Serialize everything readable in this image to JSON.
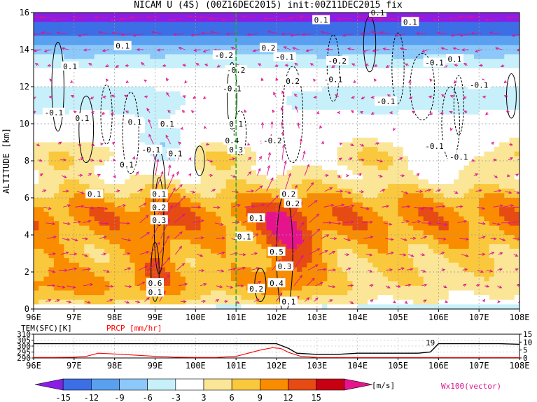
{
  "title": "NICAM U (4S) (00Z16DEC2015) init:00Z11DEC2015 fix",
  "chart_data": [
    {
      "type": "heatmap",
      "title": "NICAM U (4S) (00Z16DEC2015) init:00Z11DEC2015 fix",
      "xlabel": "",
      "ylabel": "ALTITUDE [km]",
      "x_ticks": [
        "96E",
        "97E",
        "98E",
        "99E",
        "100E",
        "101E",
        "102E",
        "103E",
        "104E",
        "105E",
        "106E",
        "107E",
        "108E"
      ],
      "xlim": [
        96,
        108
      ],
      "y_ticks": [
        "0",
        "2",
        "4",
        "6",
        "8",
        "10",
        "12",
        "14",
        "16"
      ],
      "ylim": [
        0,
        16
      ],
      "grid": true,
      "shading_levels": [
        -15,
        -12,
        -9,
        -6,
        -3,
        3,
        6,
        9,
        12,
        15
      ],
      "shading_colors": [
        "#8a1ee6",
        "#3c6ee6",
        "#5aa0f0",
        "#8cc8fa",
        "#c8f0fa",
        "#ffffff",
        "#fae696",
        "#fac83c",
        "#fa8c00",
        "#e64b14",
        "#c80014",
        "#e6148c"
      ],
      "colorbar_unit": "[m/s]",
      "vector_label": "Wx100(vector)",
      "vector_color": "#dc148c",
      "marker_line_lon": 101,
      "contour_labels": [
        {
          "text": "0.1",
          "lon": 96.9,
          "alt": 13.1
        },
        {
          "text": "0.1",
          "lon": 98.2,
          "alt": 14.2
        },
        {
          "text": "0.1",
          "lon": 97.2,
          "alt": 10.3
        },
        {
          "text": "0.1",
          "lon": 98.5,
          "alt": 10.1
        },
        {
          "text": "0.1",
          "lon": 99.3,
          "alt": 10.0
        },
        {
          "text": "-0.1",
          "lon": 96.5,
          "alt": 10.6
        },
        {
          "text": "-0.1",
          "lon": 98.9,
          "alt": 8.6
        },
        {
          "text": "0.1",
          "lon": 98.3,
          "alt": 7.8
        },
        {
          "text": "0.1",
          "lon": 97.5,
          "alt": 6.2
        },
        {
          "text": "0.1",
          "lon": 99.5,
          "alt": 8.4
        },
        {
          "text": "-0.2",
          "lon": 100.7,
          "alt": 13.7
        },
        {
          "text": "-0.2",
          "lon": 101.0,
          "alt": 12.9
        },
        {
          "text": "-0.1",
          "lon": 100.9,
          "alt": 11.9
        },
        {
          "text": "0.2",
          "lon": 101.8,
          "alt": 14.1
        },
        {
          "text": "-0.1",
          "lon": 102.2,
          "alt": 13.6
        },
        {
          "text": "0.2",
          "lon": 102.4,
          "alt": 12.3
        },
        {
          "text": "0.1",
          "lon": 101.0,
          "alt": 10.0
        },
        {
          "text": "0.4",
          "lon": 100.9,
          "alt": 9.1
        },
        {
          "text": "0.3",
          "lon": 101.0,
          "alt": 8.6
        },
        {
          "text": "-0.2",
          "lon": 101.9,
          "alt": 9.1
        },
        {
          "text": "0.1",
          "lon": 99.1,
          "alt": 6.2
        },
        {
          "text": "0.2",
          "lon": 99.1,
          "alt": 5.5
        },
        {
          "text": "0.3",
          "lon": 99.1,
          "alt": 4.8
        },
        {
          "text": "0.2",
          "lon": 102.3,
          "alt": 6.2
        },
        {
          "text": "0.2",
          "lon": 102.4,
          "alt": 5.7
        },
        {
          "text": "0.1",
          "lon": 101.5,
          "alt": 4.9
        },
        {
          "text": "0.1",
          "lon": 101.2,
          "alt": 3.9
        },
        {
          "text": "0.5",
          "lon": 102.0,
          "alt": 3.1
        },
        {
          "text": "0.3",
          "lon": 102.2,
          "alt": 2.3
        },
        {
          "text": "0.4",
          "lon": 102.0,
          "alt": 1.4
        },
        {
          "text": "0.2",
          "lon": 101.5,
          "alt": 1.1
        },
        {
          "text": "0.6",
          "lon": 99.0,
          "alt": 1.4
        },
        {
          "text": "0.1",
          "lon": 99.0,
          "alt": 0.9
        },
        {
          "text": "0.1",
          "lon": 102.3,
          "alt": 0.4
        },
        {
          "text": "0.1",
          "lon": 103.1,
          "alt": 15.6
        },
        {
          "text": "-0.2",
          "lon": 103.5,
          "alt": 13.4
        },
        {
          "text": "-0.1",
          "lon": 103.4,
          "alt": 12.4
        },
        {
          "text": "0.1",
          "lon": 104.5,
          "alt": 16.0
        },
        {
          "text": "0.1",
          "lon": 105.3,
          "alt": 15.5
        },
        {
          "text": "-0.1",
          "lon": 105.9,
          "alt": 13.3
        },
        {
          "text": "0.1",
          "lon": 106.4,
          "alt": 13.5
        },
        {
          "text": "-0.1",
          "lon": 107.0,
          "alt": 12.1
        },
        {
          "text": "-0.1",
          "lon": 104.7,
          "alt": 11.2
        },
        {
          "text": "-0.1",
          "lon": 105.9,
          "alt": 8.8
        },
        {
          "text": "-0.1",
          "lon": 106.5,
          "alt": 8.2
        }
      ]
    },
    {
      "type": "line",
      "title": "",
      "x_ticks": [
        "96E",
        "97E",
        "98E",
        "99E",
        "100E",
        "101E",
        "102E",
        "103E",
        "104E",
        "105E",
        "106E",
        "107E",
        "108E"
      ],
      "xlim": [
        96,
        108
      ],
      "left_axis_label": "TEM(SFC)[K]",
      "left_ticks": [
        "290",
        "295",
        "300",
        "305",
        "310"
      ],
      "left_ylim": [
        290,
        310
      ],
      "right_axis_label": "PRCP [mm/hr]",
      "right_ticks": [
        "0",
        "5",
        "10",
        "15"
      ],
      "right_ylim": [
        0,
        15
      ],
      "annotation": "19",
      "series": [
        {
          "name": "TEM(SFC)[K]",
          "color": "#000000",
          "x": [
            96,
            96.5,
            97,
            97.5,
            98,
            98.5,
            99,
            99.5,
            100,
            100.5,
            101,
            101.5,
            102,
            102.3,
            102.5,
            103,
            103.5,
            104,
            104.5,
            105,
            105.5,
            105.8,
            106,
            106.5,
            107,
            107.5,
            108
          ],
          "y": [
            302,
            302,
            302,
            302,
            302,
            302,
            302,
            302,
            302,
            302,
            302,
            302,
            302,
            298,
            294,
            293,
            293,
            294,
            294,
            294,
            294,
            295,
            302,
            302,
            302,
            302,
            301.5
          ]
        },
        {
          "name": "PRCP [mm/hr]",
          "color": "#ff0000",
          "x": [
            96,
            96.5,
            97,
            97.3,
            97.6,
            98,
            98.5,
            99,
            99.5,
            100,
            100.5,
            101,
            101.3,
            101.6,
            101.9,
            102.1,
            102.3,
            102.6,
            103,
            104,
            105,
            106,
            107,
            108
          ],
          "y": [
            0.3,
            0.3,
            0.5,
            1.0,
            3.0,
            2.5,
            1.8,
            1.0,
            0.5,
            0.3,
            0.3,
            1.0,
            3.0,
            5.0,
            6.5,
            6.0,
            3.5,
            1.0,
            0.3,
            0.2,
            0.2,
            0.2,
            0.2,
            0.2
          ]
        }
      ]
    }
  ]
}
